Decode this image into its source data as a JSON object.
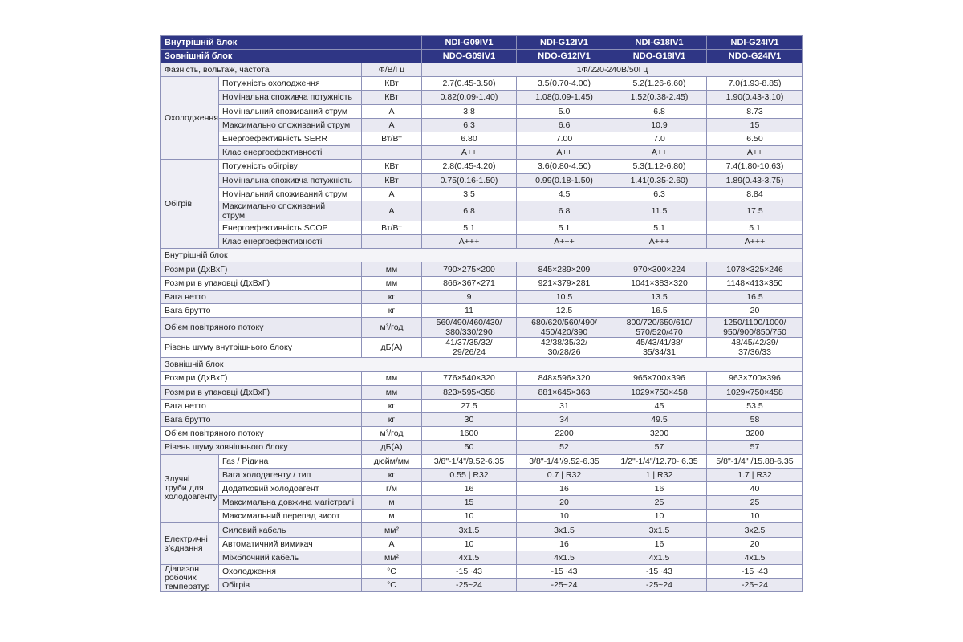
{
  "header": {
    "rows": [
      {
        "label": "Внутрішній блок",
        "models": [
          "NDI-G09IV1",
          "NDI-G12IV1",
          "NDI-G18IV1",
          "NDI-G24IV1"
        ]
      },
      {
        "label": "Зовнішній блок",
        "models": [
          "NDO-G09IV1",
          "NDO-G12IV1",
          "NDO-G18IV1",
          "NDO-G24IV1"
        ]
      }
    ]
  },
  "body": [
    {
      "label": "Фазність, вольтаж, частота",
      "unit": "Ф/В/Гц",
      "value": "1Ф/220-240В/50Гц"
    },
    {
      "group": "Охолодження",
      "rows": [
        {
          "label": "Потужність охолодження",
          "unit": "КВт",
          "values": [
            "2.7(0.45-3.50)",
            "3.5(0.70-4.00)",
            "5.2(1.26-6.60)",
            "7.0(1.93-8.85)"
          ]
        },
        {
          "label": "Номінальна споживча потужність",
          "unit": "КВт",
          "values": [
            "0.82(0.09-1.40)",
            "1.08(0.09-1.45)",
            "1.52(0.38-2.45)",
            "1.90(0.43-3.10)"
          ]
        },
        {
          "label": "Номінальний споживаний струм",
          "unit": "А",
          "values": [
            "3.8",
            "5.0",
            "6.8",
            "8.73"
          ]
        },
        {
          "label": "Максимально споживаний струм",
          "unit": "А",
          "values": [
            "6.3",
            "6.6",
            "10.9",
            "15"
          ]
        },
        {
          "label": "Енергоефективність SERR",
          "unit": "Вт/Вт",
          "values": [
            "6.80",
            "7.00",
            "7.0",
            "6.50"
          ]
        },
        {
          "label": "Клас енергоефективності",
          "values": [
            "A++",
            "A++",
            "A++",
            "A++"
          ]
        }
      ]
    },
    {
      "group": "Обігрів",
      "rows": [
        {
          "label": "Потужність обігріву",
          "unit": "КВт",
          "values": [
            "2.8(0.45-4.20)",
            "3.6(0.80-4.50)",
            "5.3(1.12-6.80)",
            "7.4(1.80-10.63)"
          ]
        },
        {
          "label": "Номінальна споживча потужність",
          "unit": "КВт",
          "values": [
            "0.75(0.16-1.50)",
            "0.99(0.18-1.50)",
            "1.41(0.35-2.60)",
            "1.89(0.43-3.75)"
          ]
        },
        {
          "label": "Номінальний споживаний струм",
          "unit": "А",
          "values": [
            "3.5",
            "4.5",
            "6.3",
            "8.84"
          ]
        },
        {
          "label": "Максимально споживаний\nструм",
          "unit": "А",
          "values": [
            "6.8",
            "6.8",
            "11.5",
            "17.5"
          ]
        },
        {
          "label": "Енергоефективність SCOP",
          "unit": "Вт/Вт",
          "values": [
            "5.1",
            "5.1",
            "5.1",
            "5.1"
          ]
        },
        {
          "label": "Клас енергоефективності",
          "values": [
            "A+++",
            "A+++",
            "A+++",
            "A+++"
          ]
        }
      ]
    },
    {
      "section": "Внутрішній блок"
    },
    {
      "label": "Розміри (ДхВхГ)",
      "unit": "мм",
      "values": [
        "790×275×200",
        "845×289×209",
        "970×300×224",
        "1078×325×246"
      ]
    },
    {
      "label": "Розміри в упаковці (ДхВхГ)",
      "unit": "мм",
      "values": [
        "866×367×271",
        "921×379×281",
        "1041×383×320",
        "1148×413×350"
      ]
    },
    {
      "label": "Вага нетто",
      "unit": "кг",
      "values": [
        "9",
        "10.5",
        "13.5",
        "16.5"
      ]
    },
    {
      "label": "Вага брутто",
      "unit": "кг",
      "values": [
        "11",
        "12.5",
        "16.5",
        "20"
      ]
    },
    {
      "label": "Об’єм повітряного потоку",
      "unit": "м³/год",
      "values": [
        "560/490/460/430/\n380/330/290",
        "680/620/560/490/\n450/420/390",
        "800/720/650/610/\n570/520/470",
        "1250/1100/1000/\n950/900/850/750"
      ]
    },
    {
      "label": "Рівень шуму внутрішнього блоку",
      "unit": "дБ(А)",
      "values": [
        "41/37/35/32/\n29/26/24",
        "42/38/35/32/\n30/28/26",
        "45/43/41/38/\n35/34/31",
        "48/45/42/39/\n37/36/33"
      ]
    },
    {
      "section": "Зовнішній блок"
    },
    {
      "label": "Розміри (ДхВхГ)",
      "unit": "мм",
      "values": [
        "776×540×320",
        "848×596×320",
        "965×700×396",
        "963×700×396"
      ]
    },
    {
      "label": "Розміри в упаковці (ДхВхГ)",
      "unit": "мм",
      "values": [
        "823×595×358",
        "881×645×363",
        "1029×750×458",
        "1029×750×458"
      ]
    },
    {
      "label": "Вага нетто",
      "unit": "кг",
      "values": [
        "27.5",
        "31",
        "45",
        "53.5"
      ]
    },
    {
      "label": "Вага брутто",
      "unit": "кг",
      "values": [
        "30",
        "34",
        "49.5",
        "58"
      ]
    },
    {
      "label": "Об’єм повітряного потоку",
      "unit": "м³/год",
      "values": [
        "1600",
        "2200",
        "3200",
        "3200"
      ]
    },
    {
      "label": "Рівень шуму зовнішнього блоку",
      "unit": "дБ(А)",
      "values": [
        "50",
        "52",
        "57",
        "57"
      ]
    },
    {
      "group": "Злучні\nтруби для\nхолодоагенту",
      "rows": [
        {
          "label": "Газ / Рідина",
          "unit": "дюйм/мм",
          "values": [
            "3/8\"-1/4\"/9.52-6.35",
            "3/8\"-1/4\"/9.52-6.35",
            "1/2\"-1/4\"/12.70- 6.35",
            "5/8\"-1/4\" /15.88-6.35"
          ]
        },
        {
          "label": "Вага холодагенту / тип",
          "unit": "кг",
          "values": [
            "0.55 | R32",
            "0.7 | R32",
            "1 | R32",
            "1.7 | R32"
          ]
        },
        {
          "label": "Додатковий холодоагент",
          "unit": "г/м",
          "values": [
            "16",
            "16",
            "16",
            "40"
          ]
        },
        {
          "label": "Максимальна довжина магістралі",
          "unit": "м",
          "values": [
            "15",
            "20",
            "25",
            "25"
          ]
        },
        {
          "label": "Максимальний перепад висот",
          "unit": "м",
          "values": [
            "10",
            "10",
            "10",
            "10"
          ]
        }
      ]
    },
    {
      "group": "Електричні\nз’єднання",
      "rows": [
        {
          "label": "Силовий кабель",
          "unit": "мм²",
          "values": [
            "3x1.5",
            "3x1.5",
            "3x1.5",
            "3x2.5"
          ]
        },
        {
          "label": "Автоматичний вимикач",
          "unit": "А",
          "values": [
            "10",
            "16",
            "16",
            "20"
          ]
        },
        {
          "label": "Міжблочний кабель",
          "unit": "мм²",
          "values": [
            "4x1.5",
            "4x1.5",
            "4x1.5",
            "4x1.5"
          ]
        }
      ]
    },
    {
      "group": "Діапазон\nробочих\nтемператур",
      "rows": [
        {
          "label": "Охолодження",
          "unit": "°С",
          "values": [
            "-15~43",
            "-15~43",
            "-15~43",
            "-15~43"
          ]
        },
        {
          "label": "Обігрів",
          "unit": "°С",
          "values": [
            "-25~24",
            "-25~24",
            "-25~24",
            "-25~24"
          ]
        }
      ]
    }
  ]
}
